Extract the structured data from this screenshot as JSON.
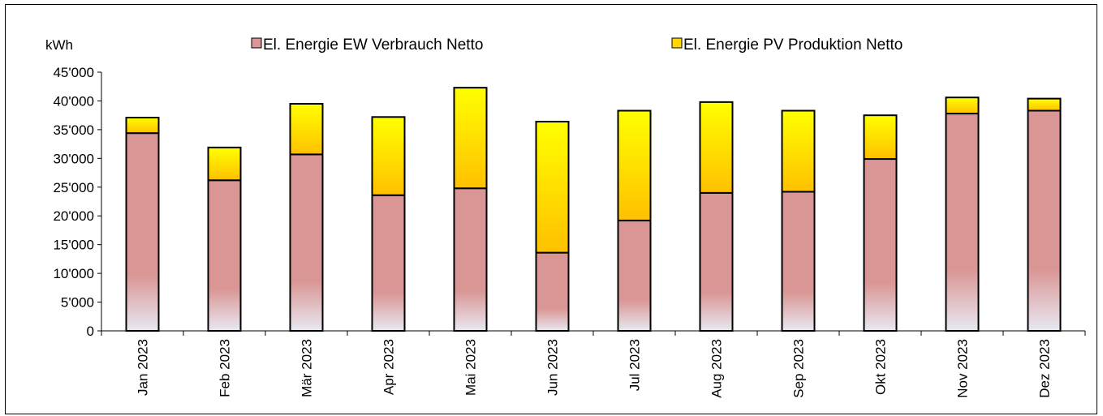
{
  "chart_data": {
    "type": "bar",
    "stacked": true,
    "ylabel": "kWh",
    "ylim": [
      0,
      45000
    ],
    "yticks": [
      "0",
      "5'000",
      "10'000",
      "15'000",
      "20'000",
      "25'000",
      "30'000",
      "35'000",
      "40'000",
      "45'000"
    ],
    "categories": [
      "Jan 2023",
      "Feb 2023",
      "Mär 2023",
      "Apr 2023",
      "Mai 2023",
      "Jun 2023",
      "Jul 2023",
      "Aug 2023",
      "Sep 2023",
      "Okt 2023",
      "Nov 2023",
      "Dez 2023"
    ],
    "series": [
      {
        "name": "El. Energie EW Verbrauch Netto",
        "color": "#d99694",
        "values": [
          34400,
          26200,
          30700,
          23600,
          24800,
          13600,
          19200,
          24000,
          24200,
          29900,
          37800,
          38300
        ]
      },
      {
        "name": "El. Energie PV Produktion Netto",
        "color": "#ffd700",
        "values": [
          2700,
          5700,
          8800,
          13600,
          17500,
          22800,
          19100,
          15800,
          14100,
          7600,
          2800,
          2100
        ]
      }
    ],
    "legend_position": "top",
    "grid": false
  }
}
